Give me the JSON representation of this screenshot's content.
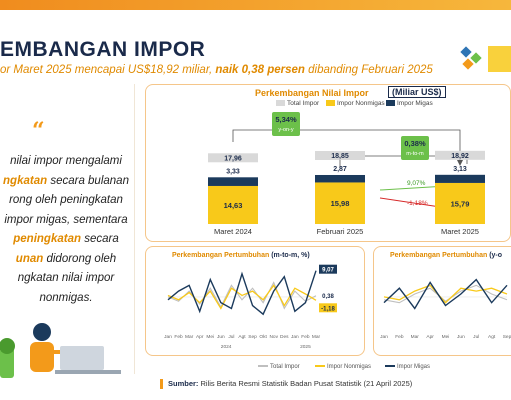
{
  "header": {
    "title": "EMBANGAN IMPOR",
    "subtitle_part1": "or Maret 2025 mencapai US$18,92 miliar, ",
    "subtitle_part2": "naik 0,38 persen",
    "subtitle_part3": " dibanding Februari 2025"
  },
  "narrative": {
    "quote_mark": "“",
    "line1": "nilai impor mengalami",
    "line2_hl": "ngkatan",
    "line2_rest": " secara bulanan",
    "line3": "rong oleh peningkatan",
    "line4": "impor migas, sementara",
    "line5_hl": "peningkatan",
    "line5_rest": " secara",
    "line6_hl": "unan",
    "line6_rest": " didorong oleh",
    "line7": "ngkatan nilai impor",
    "line8": "nonmigas."
  },
  "main_chart_header": {
    "title": "Perkembangan Nilai Impor",
    "title_boxed": "(Miliar US$)"
  },
  "legend": {
    "total": "Total Impor",
    "nonmigas": "Impor Nonmigas",
    "migas": "Impor Migas"
  },
  "colors": {
    "total": "#d9d9d9",
    "nonmigas": "#f8c91a",
    "migas": "#1b3a5c",
    "accent": "#f39a1a",
    "green": "#6cc04a",
    "red": "#d62828"
  },
  "chart_data": [
    {
      "type": "bar",
      "title": "Perkembangan Nilai Impor (Miliar US$)",
      "categories": [
        "Maret 2024",
        "Februari 2025",
        "Maret 2025"
      ],
      "series": [
        {
          "name": "Total Impor",
          "values": [
            17.96,
            18.85,
            18.92
          ],
          "labels": [
            "17,96",
            "18,85",
            "18,92"
          ]
        },
        {
          "name": "Impor Nonmigas",
          "values": [
            14.63,
            15.98,
            15.79
          ],
          "labels": [
            "14,63",
            "15,98",
            "15,79"
          ]
        },
        {
          "name": "Impor Migas",
          "values": [
            3.33,
            2.87,
            3.13
          ],
          "labels": [
            "3,33",
            "2,87",
            "3,13"
          ]
        }
      ],
      "annotations": {
        "yoy_value": "5,34%",
        "yoy_label": "y-on-y",
        "mtm_value": "0,38%",
        "mtm_label": "m-to-m",
        "migas_change": "9,07%",
        "nonmigas_change": "-1,18%"
      }
    },
    {
      "type": "line",
      "title": "Perkembangan Pertumbuhan (m-to-m, %)",
      "x_labels": [
        "Jan",
        "Feb",
        "Mar",
        "Apr",
        "Mei",
        "Jun",
        "Jul",
        "Agt",
        "Sep",
        "Okt",
        "Nov",
        "Des",
        "Jan",
        "Feb",
        "Mar"
      ],
      "year_labels": [
        "2024",
        "2025"
      ],
      "series": [
        {
          "name": "Total Impor",
          "values": [
            0.0,
            -1.5,
            2.0,
            -2.5,
            3.0,
            -3.5,
            4.0,
            -1.0,
            3.0,
            -2.0,
            5.0,
            -4.0,
            2.0,
            -1.5,
            0.38
          ]
        },
        {
          "name": "Impor Nonmigas",
          "values": [
            0.5,
            -1.0,
            1.5,
            -2.0,
            2.0,
            -4.0,
            3.0,
            0.5,
            2.0,
            -1.0,
            4.0,
            -3.0,
            3.0,
            1.0,
            -1.18
          ]
        },
        {
          "name": "Impor Migas",
          "values": [
            -1.0,
            2.0,
            4.0,
            -5.0,
            6.0,
            -2.0,
            -4.0,
            8.0,
            -3.0,
            -6.0,
            2.0,
            7.0,
            -5.0,
            -2.0,
            9.07
          ]
        }
      ],
      "end_labels": {
        "migas": "9,07",
        "total": "0,38",
        "nonmigas": "-1,18"
      }
    },
    {
      "type": "line",
      "title": "Perkembangan Pertumbuhan (y-on-y, %)",
      "x_labels": [
        "Jan",
        "Feb",
        "Mar",
        "Apr",
        "Mei",
        "Jun",
        "Jul",
        "Agt",
        "Sep"
      ],
      "series": [
        {
          "name": "Total Impor",
          "values": [
            -1.0,
            -2.0,
            1.0,
            3.0,
            -1.5,
            2.0,
            4.0,
            1.0,
            -1.0
          ]
        },
        {
          "name": "Impor Nonmigas",
          "values": [
            0.0,
            -1.0,
            2.0,
            4.0,
            -2.0,
            3.0,
            2.0,
            3.0,
            1.0
          ]
        },
        {
          "name": "Impor Migas",
          "values": [
            -2.0,
            3.0,
            -4.0,
            5.0,
            -3.0,
            1.0,
            6.0,
            -2.0,
            4.0
          ]
        }
      ]
    }
  ],
  "sub_charts": {
    "mtm_title_a": "Perkembangan Pertumbuhan ",
    "mtm_title_b": "(m-to-m, %)",
    "yoy_title_a": "Perkembangan Pertumbuhan ",
    "yoy_title_b": "(y-o"
  },
  "footer": {
    "source_label": "Sumber:",
    "source_text": " Rilis Berita Resmi Statistik Badan Pusat Statistik (21 April 2025)",
    "legend_total": "Total Impor",
    "legend_nonmigas": "Impor Nonmigas",
    "legend_migas": "Impor Migas"
  }
}
